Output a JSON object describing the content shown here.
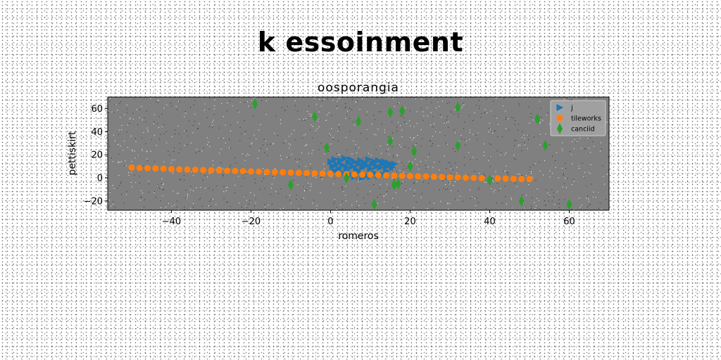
{
  "suptitle": "k essoinment",
  "chart_data": {
    "type": "scatter",
    "title": "oosporangia",
    "xlabel": "romeros",
    "ylabel": "pettiskirt",
    "xlim": [
      -56,
      70
    ],
    "ylim": [
      -28,
      70
    ],
    "xticks": [
      -40,
      -20,
      0,
      20,
      40,
      60
    ],
    "yticks": [
      -20,
      0,
      20,
      40,
      60
    ],
    "grid": false,
    "legend_position": "top-right",
    "plot_background": "#808080",
    "series": [
      {
        "name": "j",
        "marker": "triangle-right",
        "color": "#1f77b4",
        "points": [
          [
            0,
            14
          ],
          [
            0.5,
            10
          ],
          [
            1,
            16
          ],
          [
            1.5,
            12
          ],
          [
            2,
            8
          ],
          [
            2.5,
            15
          ],
          [
            3,
            11
          ],
          [
            3.5,
            17
          ],
          [
            4,
            9
          ],
          [
            4.5,
            13
          ],
          [
            5,
            16
          ],
          [
            5.5,
            10
          ],
          [
            6,
            14
          ],
          [
            6.5,
            7
          ],
          [
            7,
            12
          ],
          [
            7.5,
            15
          ],
          [
            8,
            9
          ],
          [
            8.5,
            13
          ],
          [
            9,
            11
          ],
          [
            9.5,
            16
          ],
          [
            10,
            8
          ],
          [
            10.5,
            12
          ],
          [
            11,
            14
          ],
          [
            11.5,
            10
          ],
          [
            12,
            15
          ],
          [
            12.5,
            9
          ],
          [
            13,
            12
          ],
          [
            13.5,
            14
          ],
          [
            14,
            10
          ],
          [
            14.5,
            13
          ],
          [
            15,
            11
          ],
          [
            15.5,
            9
          ],
          [
            16,
            12
          ],
          [
            3,
            4
          ],
          [
            5,
            3
          ],
          [
            7,
            5
          ],
          [
            9,
            2
          ],
          [
            11,
            4
          ],
          [
            13,
            3
          ],
          [
            6,
            1
          ],
          [
            8,
            0
          ],
          [
            10,
            1
          ],
          [
            12,
            2
          ],
          [
            1,
            6
          ],
          [
            4,
            7
          ],
          [
            14,
            6
          ]
        ]
      },
      {
        "name": "tileworks",
        "marker": "circle",
        "color": "#ff7f0e",
        "points": [
          [
            -50,
            9
          ],
          [
            -48,
            8.6
          ],
          [
            -46,
            8.4
          ],
          [
            -44,
            8.2
          ],
          [
            -42,
            8
          ],
          [
            -40,
            7.6
          ],
          [
            -38,
            7.4
          ],
          [
            -36,
            7.2
          ],
          [
            -34,
            7
          ],
          [
            -32,
            6.8
          ],
          [
            -30,
            6.6
          ],
          [
            -28,
            6.4
          ],
          [
            -26,
            6.2
          ],
          [
            -24,
            6
          ],
          [
            -22,
            5.8
          ],
          [
            -20,
            5.6
          ],
          [
            -18,
            5.4
          ],
          [
            -16,
            5.2
          ],
          [
            -14,
            5
          ],
          [
            -12,
            4.8
          ],
          [
            -10,
            4.6
          ],
          [
            -8,
            4.4
          ],
          [
            -6,
            4.2
          ],
          [
            -4,
            4
          ],
          [
            -2,
            3.8
          ],
          [
            0,
            3.6
          ],
          [
            2,
            3.4
          ],
          [
            4,
            3.2
          ],
          [
            6,
            3
          ],
          [
            8,
            2.8
          ],
          [
            10,
            2.6
          ],
          [
            12,
            2.4
          ],
          [
            14,
            2.2
          ],
          [
            16,
            2
          ],
          [
            18,
            1.8
          ],
          [
            20,
            1.6
          ],
          [
            22,
            1.4
          ],
          [
            24,
            1.2
          ],
          [
            26,
            1
          ],
          [
            28,
            0.8
          ],
          [
            30,
            0.6
          ],
          [
            32,
            0.4
          ],
          [
            34,
            0.2
          ],
          [
            36,
            0
          ],
          [
            38,
            -0.2
          ],
          [
            42,
            -0.4
          ],
          [
            44,
            -0.6
          ],
          [
            46,
            -0.8
          ],
          [
            48,
            -1
          ],
          [
            50,
            -1
          ]
        ]
      },
      {
        "name": "canciid",
        "marker": "thin-diamond",
        "color": "#2ca02c",
        "points": [
          [
            -19,
            64
          ],
          [
            -10,
            -6
          ],
          [
            -4,
            53
          ],
          [
            -1,
            26
          ],
          [
            4,
            0
          ],
          [
            7,
            49
          ],
          [
            11,
            -23
          ],
          [
            15,
            57
          ],
          [
            15,
            32
          ],
          [
            16,
            -6
          ],
          [
            17,
            -5
          ],
          [
            18,
            58
          ],
          [
            20,
            10
          ],
          [
            21,
            23
          ],
          [
            32,
            61
          ],
          [
            32,
            28
          ],
          [
            40,
            -2
          ],
          [
            48,
            -20
          ],
          [
            52,
            51
          ],
          [
            54,
            28
          ],
          [
            60,
            -23
          ]
        ]
      }
    ]
  }
}
